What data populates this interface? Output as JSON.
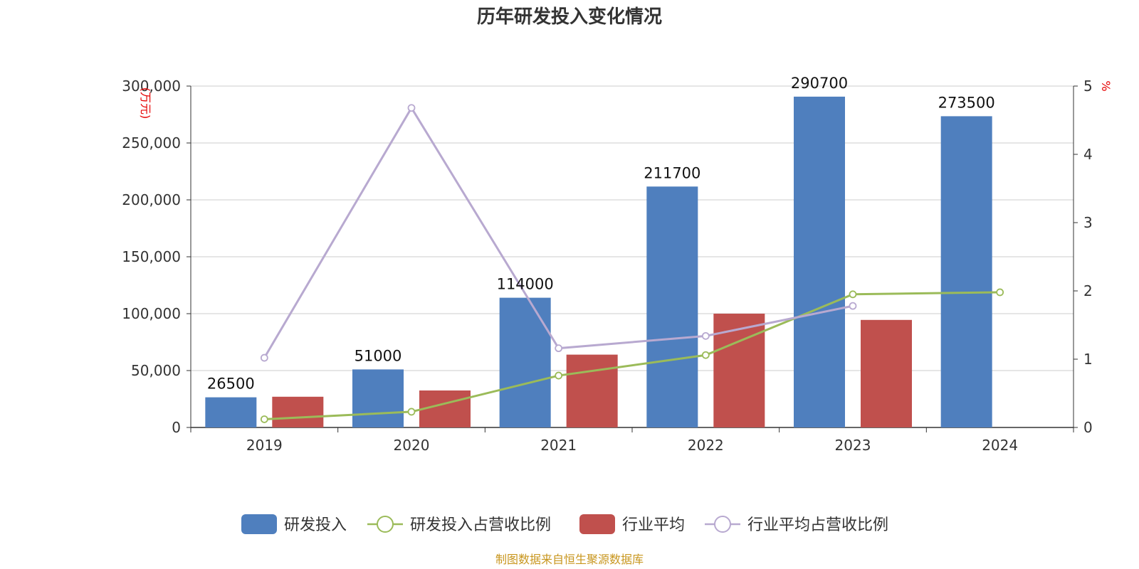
{
  "chart_data": {
    "type": "bar",
    "title": "历年研发投入变化情况",
    "categories": [
      "2019",
      "2020",
      "2021",
      "2022",
      "2023",
      "2024"
    ],
    "y_left": {
      "unit": "(万元)",
      "range": [
        0,
        300000
      ],
      "ticks": [
        "0",
        "50,000",
        "100,000",
        "150,000",
        "200,000",
        "250,000",
        "300,000"
      ]
    },
    "y_right": {
      "unit": "%",
      "range": [
        0,
        5
      ],
      "ticks": [
        "0",
        "1",
        "2",
        "3",
        "4",
        "5"
      ]
    },
    "grid": true,
    "legend_position": "bottom",
    "series": [
      {
        "name": "研发投入",
        "kind": "bar",
        "axis": "left",
        "color": "#4f7fbe",
        "values": [
          26500,
          51000,
          114000,
          211700,
          290700,
          273500
        ],
        "labels": [
          "26500",
          "51000",
          "114000",
          "211700",
          "290700",
          "273500"
        ]
      },
      {
        "name": "研发投入占营收比例",
        "kind": "line",
        "axis": "right",
        "color": "#9bbb59",
        "values": [
          0.12,
          0.23,
          0.76,
          1.06,
          1.95,
          1.98
        ]
      },
      {
        "name": "行业平均",
        "kind": "bar",
        "axis": "left",
        "color": "#c0504d",
        "values": [
          27000,
          32500,
          64000,
          100000,
          94500,
          null
        ]
      },
      {
        "name": "行业平均占营收比例",
        "kind": "line",
        "axis": "right",
        "color": "#b8a9d0",
        "values": [
          1.02,
          4.68,
          1.16,
          1.34,
          1.78,
          null
        ]
      }
    ],
    "source": "制图数据来自恒生聚源数据库"
  }
}
